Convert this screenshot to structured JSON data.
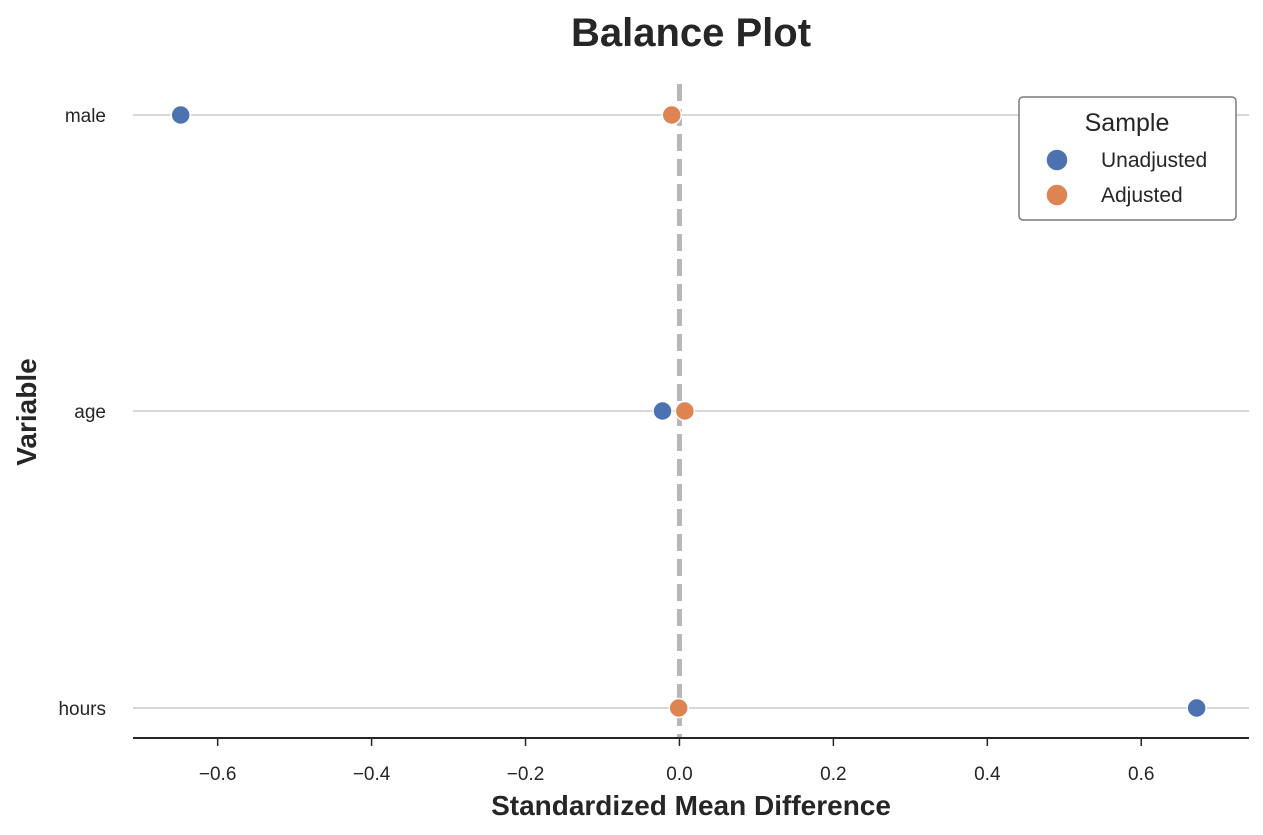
{
  "chart_data": {
    "type": "scatter",
    "title": "Balance Plot",
    "xlabel": "Standardized Mean Difference",
    "ylabel": "Variable",
    "xlim": [
      -0.71,
      0.74
    ],
    "xticks": [
      -0.6,
      -0.4,
      -0.2,
      0.0,
      0.2,
      0.4,
      0.6
    ],
    "xtick_labels": [
      "−0.6",
      "−0.4",
      "−0.2",
      "0.0",
      "0.2",
      "0.4",
      "0.6"
    ],
    "categories": [
      "male",
      "age",
      "hours"
    ],
    "reference_line": 0,
    "grid": "horizontal",
    "legend": {
      "title": "Sample",
      "position": "top-right"
    },
    "series": [
      {
        "name": "Unadjusted",
        "color": "#4c72b0",
        "values": [
          -0.648,
          -0.022,
          0.672
        ]
      },
      {
        "name": "Adjusted",
        "color": "#dd8452",
        "values": [
          -0.01,
          0.007,
          -0.001
        ]
      }
    ]
  }
}
